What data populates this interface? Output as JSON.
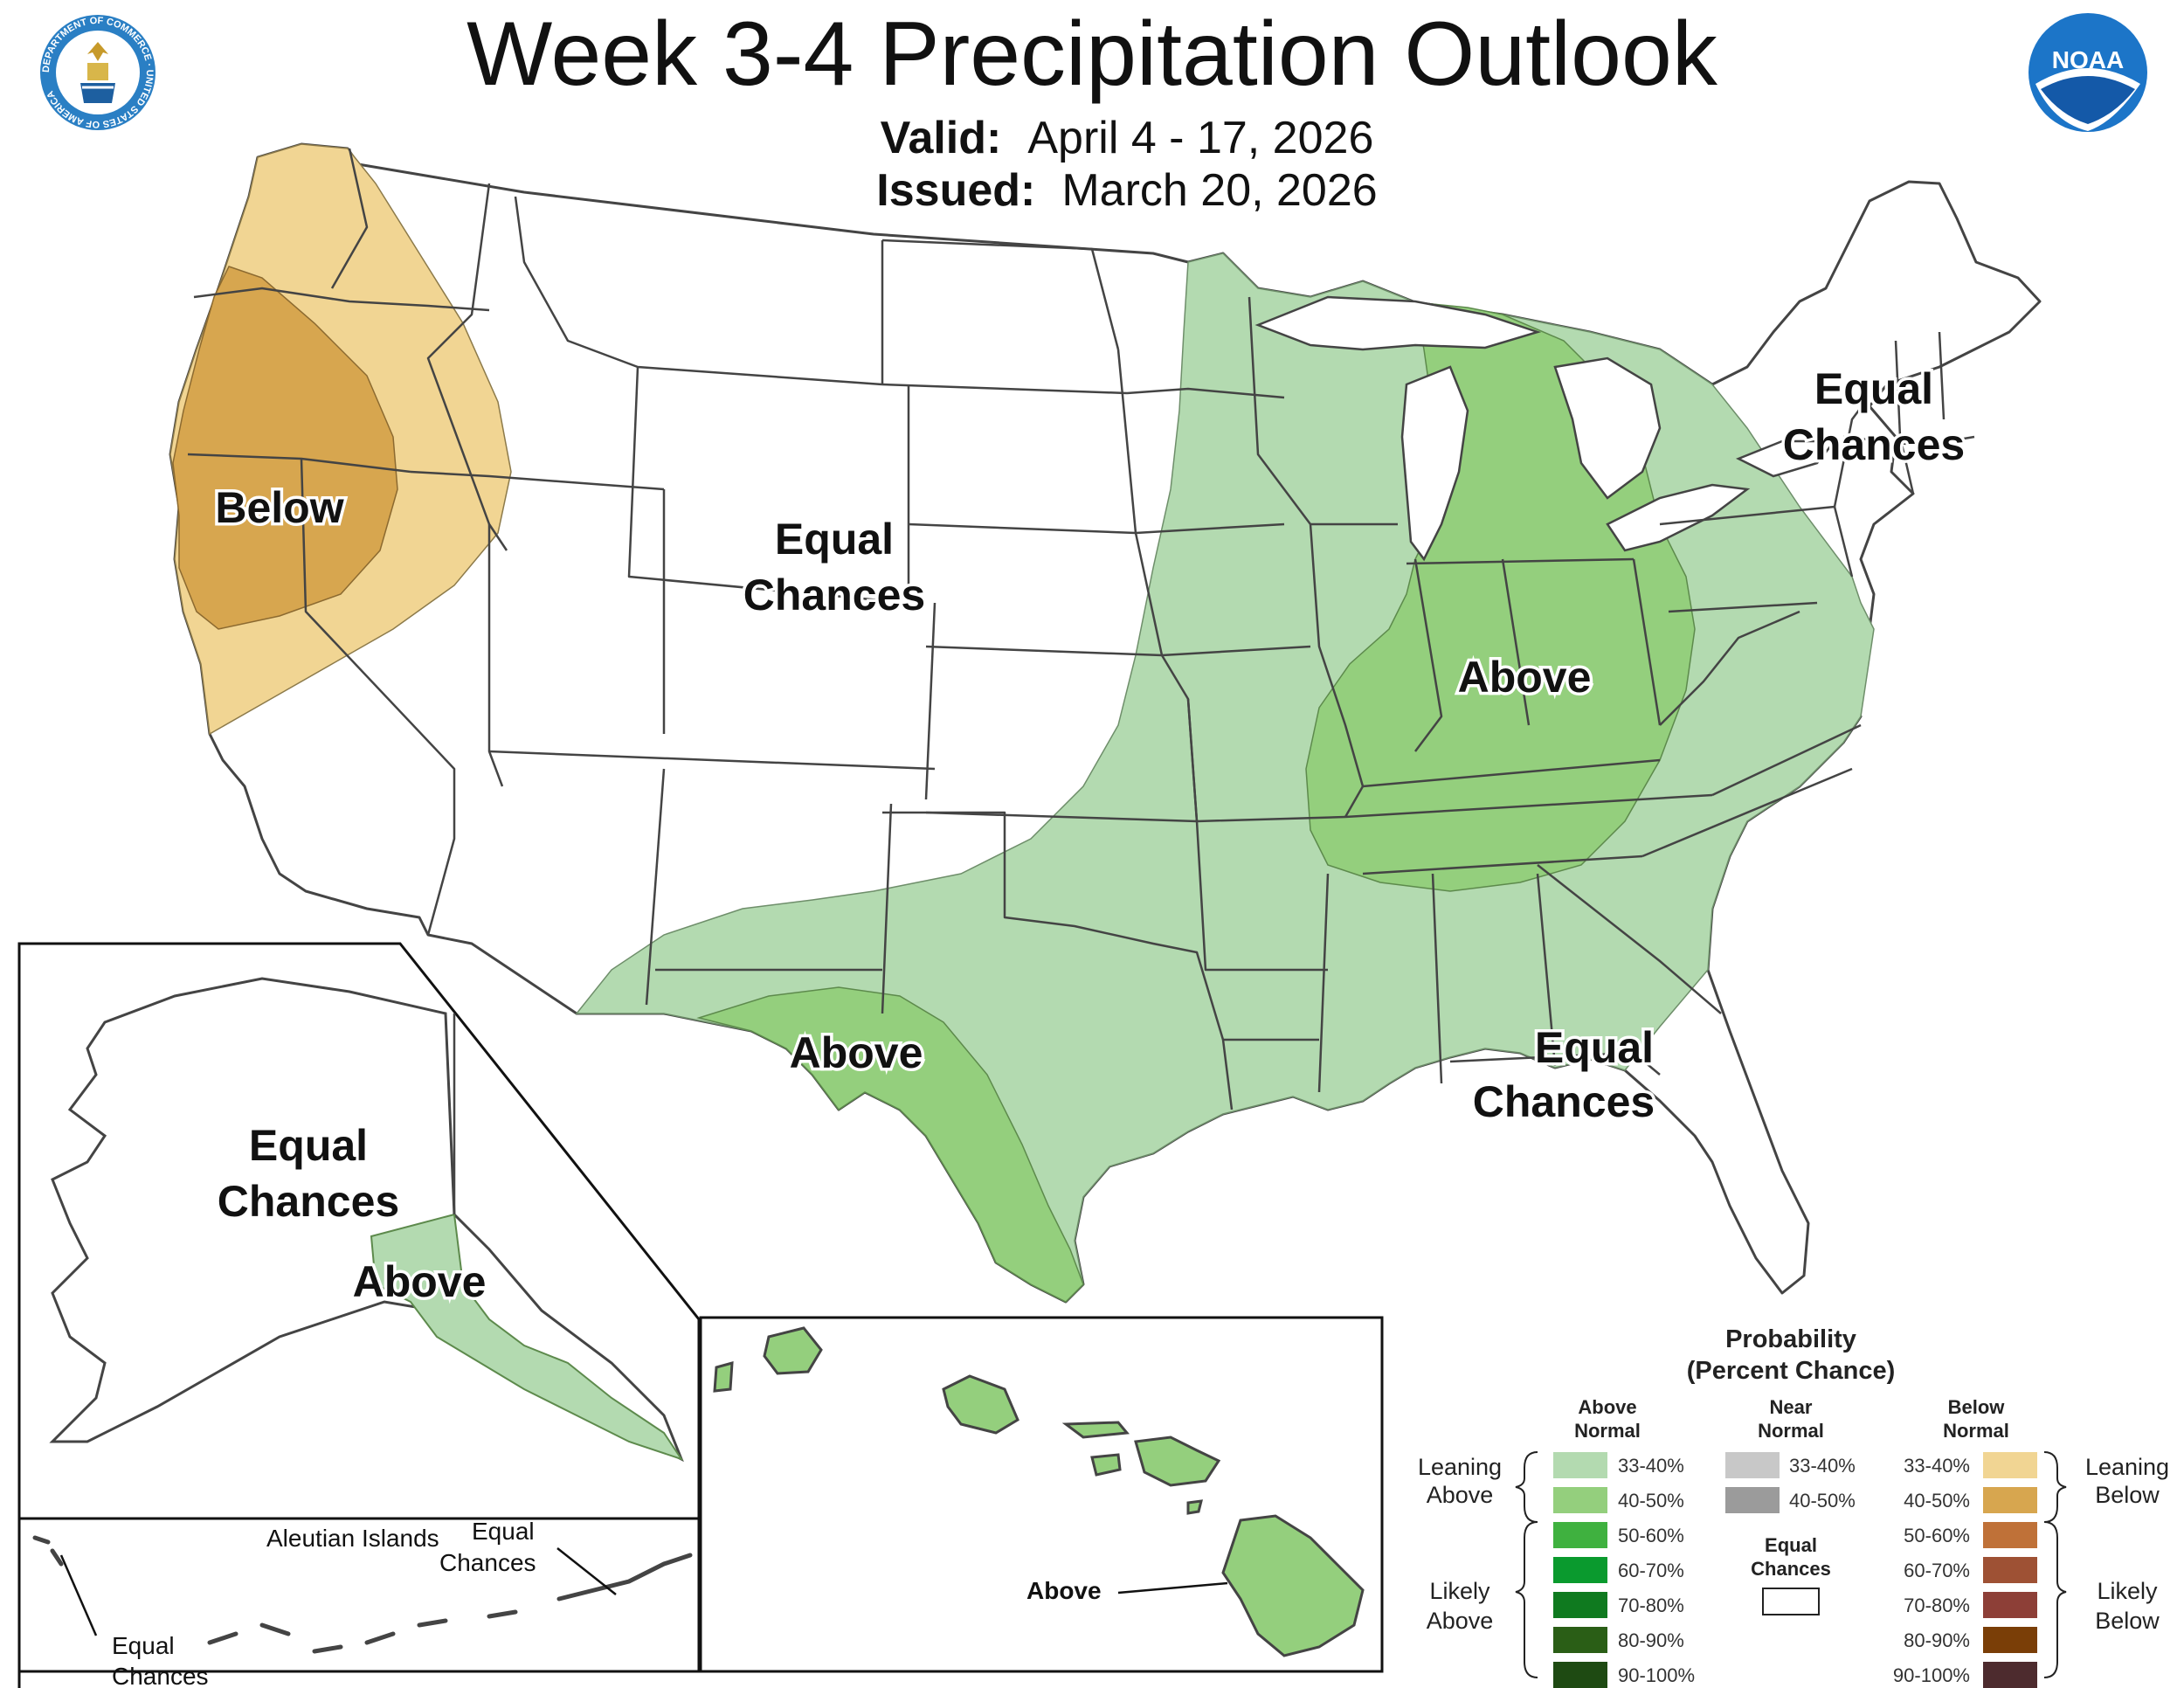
{
  "header": {
    "title": "Week 3-4 Precipitation Outlook",
    "valid_label": "Valid:",
    "valid_value": "April 4 - 17, 2026",
    "issued_label": "Issued:",
    "issued_value": "March 20, 2026"
  },
  "logos": {
    "left": "department-of-commerce-seal",
    "left_text": "DEPARTMENT OF COMMERCE · UNITED STATES OF AMERICA",
    "right": "noaa-logo",
    "right_text": "NOAA"
  },
  "map_labels": {
    "west_below": "Below",
    "central_equal": [
      "Equal",
      "Chances"
    ],
    "northeast_equal": [
      "Equal",
      "Chances"
    ],
    "ohio_valley_above": "Above",
    "texas_above": "Above",
    "gulf_equal": [
      "Equal",
      "Chances"
    ],
    "alaska_equal": [
      "Equal",
      "Chances"
    ],
    "alaska_above": "Above",
    "aleutian_title": "Aleutian Islands",
    "aleutian_east_equal": [
      "Equal",
      "Chances"
    ],
    "aleutian_west_equal": [
      "Equal",
      "Chances"
    ],
    "hawaii_above": "Above"
  },
  "colors": {
    "above_33_40": "#b3dab0",
    "above_40_50": "#94cf7d",
    "below_33_40": "#f1d593",
    "below_40_50": "#d7a64f",
    "state_border": "#444444"
  },
  "legend": {
    "title_line1": "Probability",
    "title_line2": "(Percent Chance)",
    "above_header": [
      "Above",
      "Normal"
    ],
    "near_header": [
      "Near",
      "Normal"
    ],
    "below_header": [
      "Below",
      "Normal"
    ],
    "above_rows": [
      {
        "label": "33-40%",
        "color": "#b3dab0"
      },
      {
        "label": "40-50%",
        "color": "#94cf7d"
      },
      {
        "label": "50-60%",
        "color": "#3fb13f"
      },
      {
        "label": "60-70%",
        "color": "#0a9a2e"
      },
      {
        "label": "70-80%",
        "color": "#0f7a1f"
      },
      {
        "label": "80-90%",
        "color": "#2a5e16"
      },
      {
        "label": "90-100%",
        "color": "#1e4a12"
      }
    ],
    "near_rows": [
      {
        "label": "33-40%",
        "color": "#c8c8c8"
      },
      {
        "label": "40-50%",
        "color": "#9b9b9b"
      }
    ],
    "below_rows": [
      {
        "label": "33-40%",
        "color": "#f1d593"
      },
      {
        "label": "40-50%",
        "color": "#d7a64f"
      },
      {
        "label": "50-60%",
        "color": "#bf7138"
      },
      {
        "label": "60-70%",
        "color": "#9e5134"
      },
      {
        "label": "70-80%",
        "color": "#8d3f37"
      },
      {
        "label": "80-90%",
        "color": "#7a3e07"
      },
      {
        "label": "90-100%",
        "color": "#4d2b2e"
      }
    ],
    "equal_label": [
      "Equal",
      "Chances"
    ],
    "leaning_above": [
      "Leaning",
      "Above"
    ],
    "likely_above": [
      "Likely",
      "Above"
    ],
    "leaning_below": [
      "Leaning",
      "Below"
    ],
    "likely_below": [
      "Likely",
      "Below"
    ]
  }
}
